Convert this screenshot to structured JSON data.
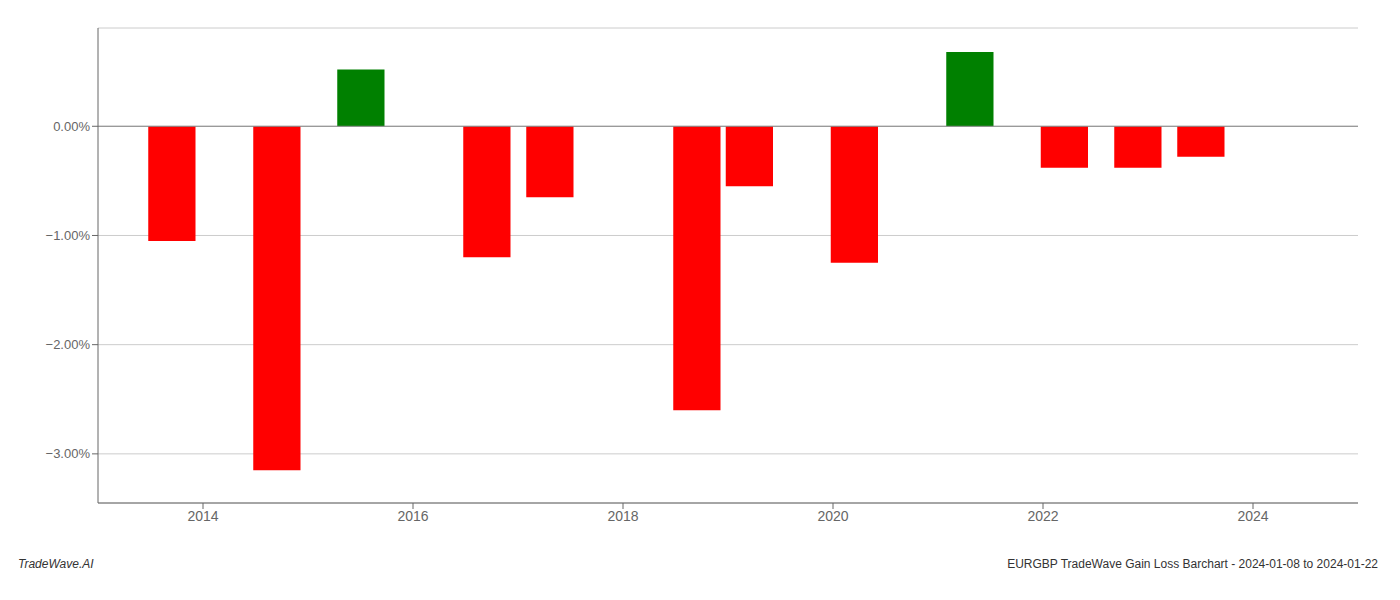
{
  "chart_data": {
    "type": "bar",
    "x": [
      2013.7,
      2014.7,
      2015.5,
      2016.7,
      2017.3,
      2018.7,
      2019.2,
      2020.2,
      2021.3,
      2022.2,
      2022.9,
      2023.5
    ],
    "values": [
      -1.05,
      -3.15,
      0.52,
      -1.2,
      -0.65,
      -2.6,
      -0.55,
      -1.25,
      0.68,
      -0.38,
      -0.38,
      -0.28
    ],
    "colors": [
      "red",
      "red",
      "green",
      "red",
      "red",
      "red",
      "red",
      "red",
      "green",
      "red",
      "red",
      "red"
    ],
    "xlim": [
      2013.0,
      2025.0
    ],
    "xticks": [
      2014,
      2016,
      2018,
      2020,
      2022,
      2024
    ],
    "ylim": [
      -3.45,
      0.9
    ],
    "yticks": [
      {
        "value": 0.0,
        "label": "0.00%"
      },
      {
        "value": -1.0,
        "label": "−1.00%"
      },
      {
        "value": -2.0,
        "label": "−2.00%"
      },
      {
        "value": -3.0,
        "label": "−3.00%"
      }
    ],
    "grid": true,
    "annotations": [
      "TradeWave.AI",
      "EURGBP TradeWave Gain Loss Barchart - 2024-01-08 to 2024-01-22"
    ]
  }
}
